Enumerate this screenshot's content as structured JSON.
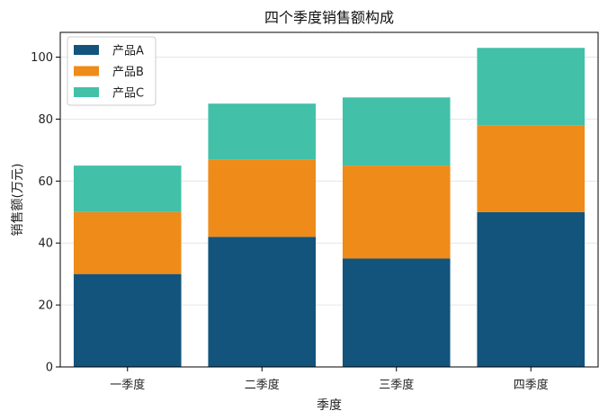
{
  "chart_data": {
    "type": "bar",
    "stacked": true,
    "title": "四个季度销售额构成",
    "xlabel": "季度",
    "ylabel": "销售额(万元)",
    "categories": [
      "一季度",
      "二季度",
      "三季度",
      "四季度"
    ],
    "series": [
      {
        "name": "产品A",
        "color": "#12547c",
        "values": [
          30,
          42,
          35,
          50
        ]
      },
      {
        "name": "产品B",
        "color": "#ee8b19",
        "values": [
          20,
          25,
          30,
          28
        ]
      },
      {
        "name": "产品C",
        "color": "#42c1a8",
        "values": [
          15,
          18,
          22,
          25
        ]
      }
    ],
    "ylim": [
      0,
      108
    ],
    "yticks": [
      0,
      20,
      40,
      60,
      80,
      100
    ],
    "grid": "horizontal",
    "legend_position": "top-left"
  }
}
